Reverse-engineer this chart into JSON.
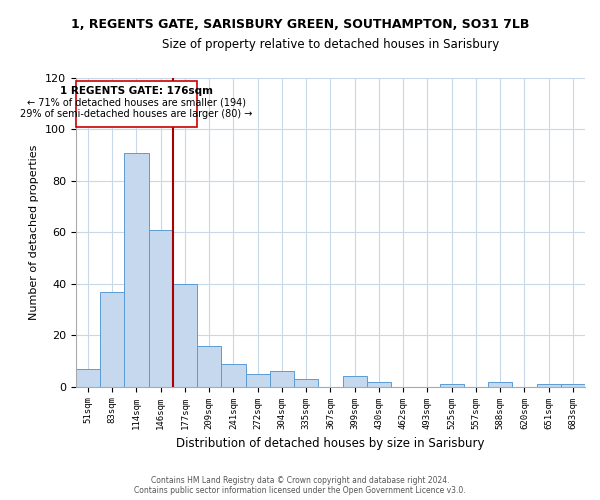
{
  "title": "1, REGENTS GATE, SARISBURY GREEN, SOUTHAMPTON, SO31 7LB",
  "subtitle": "Size of property relative to detached houses in Sarisbury",
  "xlabel": "Distribution of detached houses by size in Sarisbury",
  "ylabel": "Number of detached properties",
  "bar_labels": [
    "51sqm",
    "83sqm",
    "114sqm",
    "146sqm",
    "177sqm",
    "209sqm",
    "241sqm",
    "272sqm",
    "304sqm",
    "335sqm",
    "367sqm",
    "399sqm",
    "430sqm",
    "462sqm",
    "493sqm",
    "525sqm",
    "557sqm",
    "588sqm",
    "620sqm",
    "651sqm",
    "683sqm"
  ],
  "bar_values": [
    7,
    37,
    91,
    61,
    40,
    16,
    9,
    5,
    6,
    3,
    0,
    4,
    2,
    0,
    0,
    1,
    0,
    2,
    0,
    1,
    1
  ],
  "bar_color": "#c5d8ed",
  "bar_edge_color": "#5b9bd5",
  "highlight_line_color": "#aa0000",
  "annotation_line1": "1 REGENTS GATE: 176sqm",
  "annotation_line2": "← 71% of detached houses are smaller (194)",
  "annotation_line3": "29% of semi-detached houses are larger (80) →",
  "annotation_box_color": "#ffffff",
  "annotation_box_edge": "#cc0000",
  "ylim": [
    0,
    120
  ],
  "yticks": [
    0,
    20,
    40,
    60,
    80,
    100,
    120
  ],
  "footer_line1": "Contains HM Land Registry data © Crown copyright and database right 2024.",
  "footer_line2": "Contains public sector information licensed under the Open Government Licence v3.0.",
  "background_color": "#ffffff",
  "grid_color": "#c8d8e8"
}
